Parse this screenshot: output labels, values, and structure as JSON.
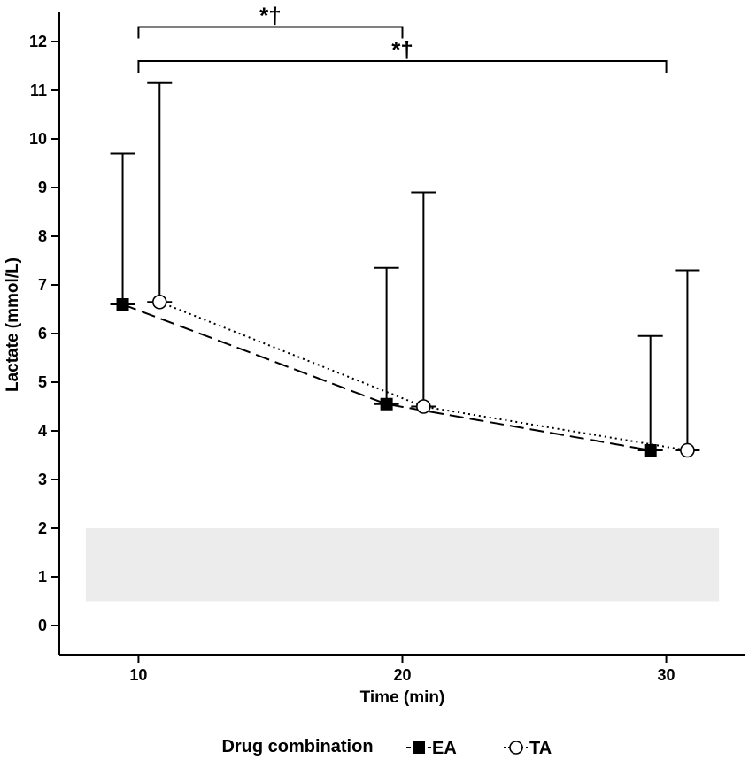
{
  "chart_data": {
    "type": "line",
    "xlabel": "Time (min)",
    "ylabel": "Lactate (mmol/L)",
    "x": [
      10,
      20,
      30
    ],
    "xlim": [
      7.0,
      33.0
    ],
    "ylim": [
      -0.6,
      12.6
    ],
    "xticks": [
      10,
      20,
      30
    ],
    "yticks": [
      0,
      1,
      2,
      3,
      4,
      5,
      6,
      7,
      8,
      9,
      10,
      11,
      12
    ],
    "grid": false,
    "reference_band": {
      "y_low": 0.5,
      "y_high": 2.0,
      "x_low": 8.0,
      "x_high": 32.0,
      "color": "#ececec"
    },
    "legend": {
      "title": "Drug combination",
      "position": "bottom"
    },
    "series": [
      {
        "name": "EA",
        "marker": "filled-square",
        "line": "dashed",
        "x_offset": -0.6,
        "values": [
          6.6,
          4.55,
          3.6
        ],
        "upper": [
          9.7,
          7.35,
          5.95
        ],
        "color": "#000000"
      },
      {
        "name": "TA",
        "marker": "open-circle",
        "line": "dotted",
        "x_offset": 0.8,
        "values": [
          6.65,
          4.5,
          3.6
        ],
        "upper": [
          11.15,
          8.9,
          7.3
        ],
        "color": "#000000"
      }
    ],
    "annotations": [
      {
        "text": "*†",
        "x_from": 10,
        "x_to": 20,
        "y": 12.3
      },
      {
        "text": "*†",
        "x_from": 10,
        "x_to": 30,
        "y": 11.6
      }
    ]
  }
}
